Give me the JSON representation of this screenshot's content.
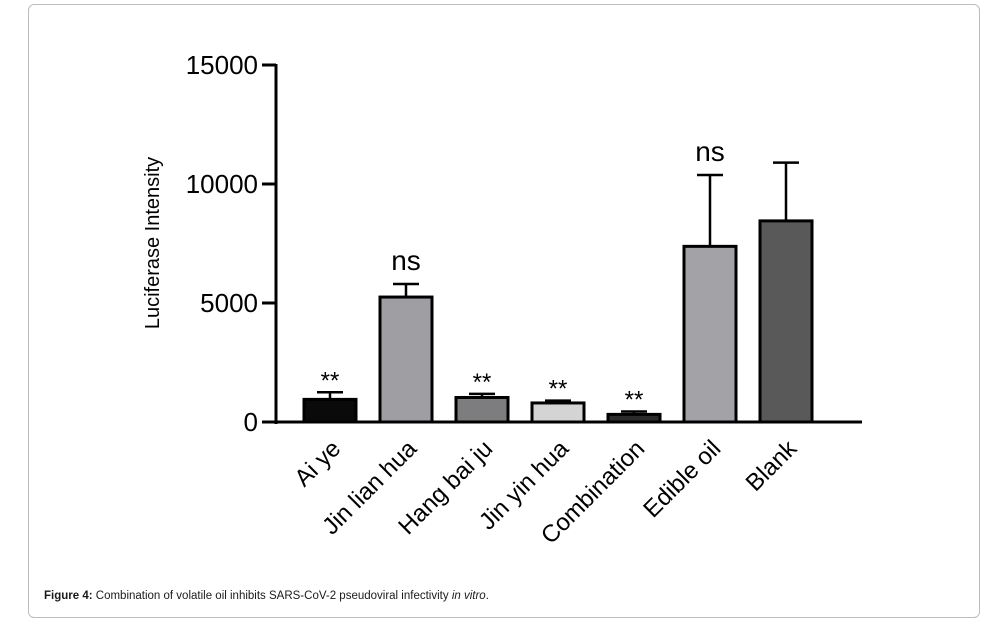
{
  "caption": {
    "label": "Figure 4:",
    "text": "Combination of volatile oil inhibits SARS-CoV-2 pseudoviral infectivity",
    "italic": "in vitro",
    "end": "."
  },
  "chart_data": {
    "type": "bar",
    "title": "",
    "xlabel": "",
    "ylabel": "Luciferase Intensity",
    "ylim": [
      0,
      15000
    ],
    "yticks": [
      0,
      5000,
      10000,
      15000
    ],
    "categories": [
      "Ai ye",
      "Jin lian hua",
      "Hang bai ju",
      "Jin yin hua",
      "Combination",
      "Edible oil",
      "Blank"
    ],
    "values": [
      950,
      5250,
      1030,
      800,
      320,
      7380,
      8450
    ],
    "error": [
      300,
      550,
      150,
      100,
      120,
      3000,
      2450
    ],
    "annotations": [
      "**",
      "ns",
      "**",
      "**",
      "**",
      "ns",
      ""
    ],
    "bar_colors": [
      "#0a0a0a",
      "#9e9ea3",
      "#7d7d80",
      "#d4d4d4",
      "#2b2b2b",
      "#a3a3a7",
      "#595959"
    ],
    "grid": false
  }
}
